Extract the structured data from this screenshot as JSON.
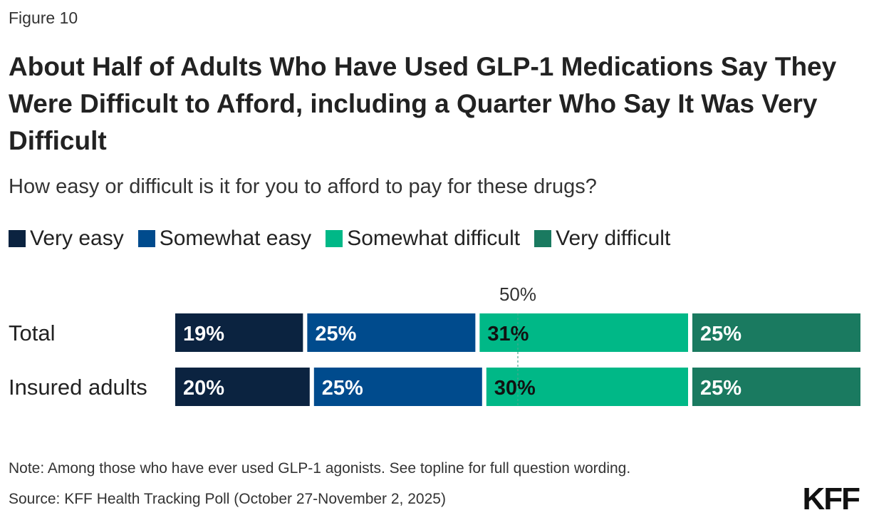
{
  "figure_label": "Figure 10",
  "note": "Note: Among those who have ever used GLP-1 agonists. See topline for full question wording.",
  "source": "Source: KFF Health Tracking Poll (October 27-November 2, 2025)",
  "logo_text": "KFF",
  "chart_data": {
    "type": "bar",
    "orientation": "horizontal",
    "stacked": true,
    "title": "About Half of Adults Who Have Used GLP-1 Medications Say They Were Difficult to Afford, including a Quarter Who Say It Was Very Difficult",
    "subtitle": "How easy or difficult is it for you to afford to pay for these drugs?",
    "legend_position": "top",
    "categories": [
      "Total",
      "Insured adults"
    ],
    "series": [
      {
        "name": "Very easy",
        "color": "#0b2340",
        "label_color": "#ffffff",
        "values": [
          19,
          20
        ]
      },
      {
        "name": "Somewhat easy",
        "color": "#004b8d",
        "label_color": "#ffffff",
        "values": [
          25,
          25
        ]
      },
      {
        "name": "Somewhat difficult",
        "color": "#00b887",
        "label_color": "#111111",
        "values": [
          31,
          30
        ]
      },
      {
        "name": "Very difficult",
        "color": "#1a7a60",
        "label_color": "#ffffff",
        "values": [
          25,
          25
        ]
      }
    ],
    "value_suffix": "%",
    "annotation": {
      "text": "50%",
      "value": 50
    },
    "xlim": [
      0,
      100
    ]
  }
}
